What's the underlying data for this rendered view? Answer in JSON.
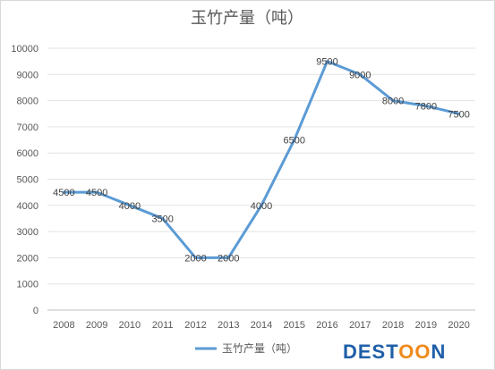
{
  "chart_data": {
    "type": "line",
    "title": "玉竹产量（吨）",
    "categories": [
      "2008",
      "2009",
      "2010",
      "2011",
      "2012",
      "2013",
      "2014",
      "2015",
      "2016",
      "2017",
      "2018",
      "2019",
      "2020"
    ],
    "series": [
      {
        "name": "玉竹产量（吨）",
        "values": [
          4500,
          4500,
          4000,
          3500,
          2000,
          2000,
          4000,
          6500,
          9500,
          9000,
          8000,
          7800,
          7500
        ]
      }
    ],
    "ylim": [
      0,
      10000
    ],
    "ytick_step": 1000,
    "grid": true,
    "data_labels": true,
    "legend_position": "bottom",
    "line_color": "#5b9bd5"
  },
  "watermark": {
    "text_blue": "DEST",
    "text_orange": "OO",
    "text_blue_end": "N"
  }
}
